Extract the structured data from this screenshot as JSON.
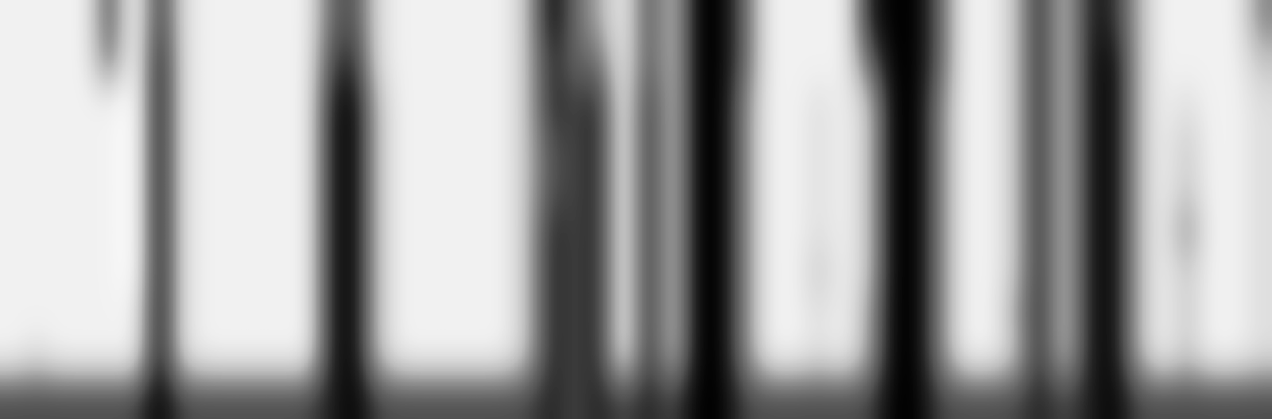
{
  "chart_data": {
    "type": "heatmap",
    "tick_labels": false,
    "color": "Greys",
    "cells": [
      [
        1,
        1,
        1,
        1,
        7,
        0,
        8,
        2,
        1,
        1,
        1,
        1,
        1,
        6,
        7,
        2,
        1,
        1,
        1,
        1,
        1,
        3,
        9,
        6,
        4,
        1,
        7,
        3,
        9,
        9,
        6,
        1,
        1,
        1,
        1,
        8,
        9,
        9,
        6,
        1,
        1,
        3,
        8,
        3,
        8,
        8,
        4,
        1,
        1,
        1,
        1,
        5
      ],
      [
        1,
        1,
        1,
        1,
        6,
        0,
        9,
        2,
        1,
        1,
        1,
        1,
        1,
        7,
        8,
        2,
        1,
        1,
        1,
        1,
        1,
        3,
        8,
        6,
        6,
        1,
        7,
        3,
        9,
        9,
        6,
        1,
        1,
        1,
        1,
        6,
        9,
        9,
        6,
        1,
        1,
        3,
        8,
        3,
        8,
        9,
        4,
        1,
        1,
        1,
        1,
        3
      ],
      [
        1,
        1,
        1,
        1,
        1,
        0,
        9,
        2,
        1,
        1,
        1,
        1,
        1,
        8,
        9,
        3,
        1,
        1,
        1,
        1,
        1,
        3,
        8,
        7,
        8,
        1,
        8,
        3,
        9,
        9,
        5,
        1,
        1,
        2,
        1,
        3,
        9,
        9,
        5,
        1,
        1,
        3,
        8,
        3,
        8,
        9,
        4,
        1,
        2,
        1,
        1,
        2
      ],
      [
        1,
        1,
        1,
        1,
        1,
        0,
        9,
        2,
        1,
        1,
        1,
        1,
        1,
        8,
        9,
        3,
        1,
        1,
        1,
        1,
        1,
        3,
        7,
        7,
        8,
        1,
        8,
        3,
        9,
        9,
        5,
        1,
        1,
        2,
        1,
        3,
        9,
        9,
        5,
        1,
        1,
        3,
        8,
        3,
        8,
        9,
        4,
        1,
        3,
        1,
        1,
        2
      ],
      [
        1,
        1,
        1,
        1,
        1,
        0,
        9,
        2,
        1,
        1,
        1,
        1,
        1,
        8,
        9,
        3,
        1,
        1,
        1,
        1,
        1,
        3,
        7,
        7,
        8,
        1,
        8,
        3,
        9,
        9,
        5,
        1,
        1,
        2,
        1,
        3,
        9,
        9,
        5,
        1,
        1,
        3,
        8,
        3,
        8,
        9,
        4,
        1,
        3,
        1,
        1,
        2
      ],
      [
        1,
        1,
        1,
        1,
        1,
        0,
        9,
        2,
        1,
        1,
        1,
        1,
        1,
        8,
        9,
        3,
        1,
        1,
        1,
        1,
        1,
        3,
        8,
        7,
        8,
        1,
        8,
        3,
        9,
        9,
        5,
        1,
        1,
        2,
        1,
        3,
        9,
        9,
        5,
        1,
        1,
        3,
        8,
        3,
        8,
        9,
        4,
        1,
        5,
        1,
        1,
        2
      ],
      [
        1,
        1,
        1,
        1,
        1,
        0,
        9,
        2,
        1,
        1,
        1,
        1,
        1,
        8,
        9,
        3,
        1,
        1,
        1,
        1,
        1,
        3,
        8,
        7,
        8,
        1,
        8,
        3,
        9,
        9,
        5,
        1,
        1,
        3,
        1,
        3,
        9,
        9,
        5,
        1,
        1,
        3,
        8,
        3,
        8,
        9,
        4,
        1,
        3,
        1,
        1,
        2
      ],
      [
        1,
        1,
        1,
        1,
        1,
        1,
        9,
        2,
        1,
        1,
        1,
        1,
        1,
        8,
        9,
        3,
        1,
        1,
        1,
        1,
        1,
        3,
        8,
        7,
        8,
        1,
        8,
        3,
        9,
        9,
        5,
        1,
        1,
        2,
        1,
        4,
        9,
        9,
        5,
        1,
        1,
        4,
        8,
        3,
        8,
        9,
        4,
        1,
        3,
        1,
        1,
        2
      ],
      [
        1,
        2,
        1,
        1,
        1,
        1,
        9,
        2,
        1,
        1,
        1,
        1,
        1,
        8,
        9,
        3,
        1,
        1,
        1,
        1,
        1,
        3,
        8,
        7,
        8,
        1,
        8,
        3,
        9,
        9,
        5,
        1,
        1,
        2,
        1,
        4,
        9,
        9,
        5,
        1,
        1,
        3,
        8,
        3,
        8,
        9,
        4,
        1,
        3,
        1,
        1,
        2
      ],
      [
        7,
        7,
        7,
        7,
        7,
        7,
        9,
        7,
        7,
        7,
        7,
        7,
        7,
        8,
        9,
        7,
        7,
        7,
        7,
        7,
        7,
        7,
        8,
        7,
        8,
        7,
        8,
        7,
        9,
        9,
        7,
        7,
        7,
        7,
        7,
        7,
        9,
        9,
        7,
        7,
        7,
        7,
        8,
        7,
        8,
        9,
        7,
        7,
        7,
        7,
        7,
        7
      ]
    ]
  }
}
